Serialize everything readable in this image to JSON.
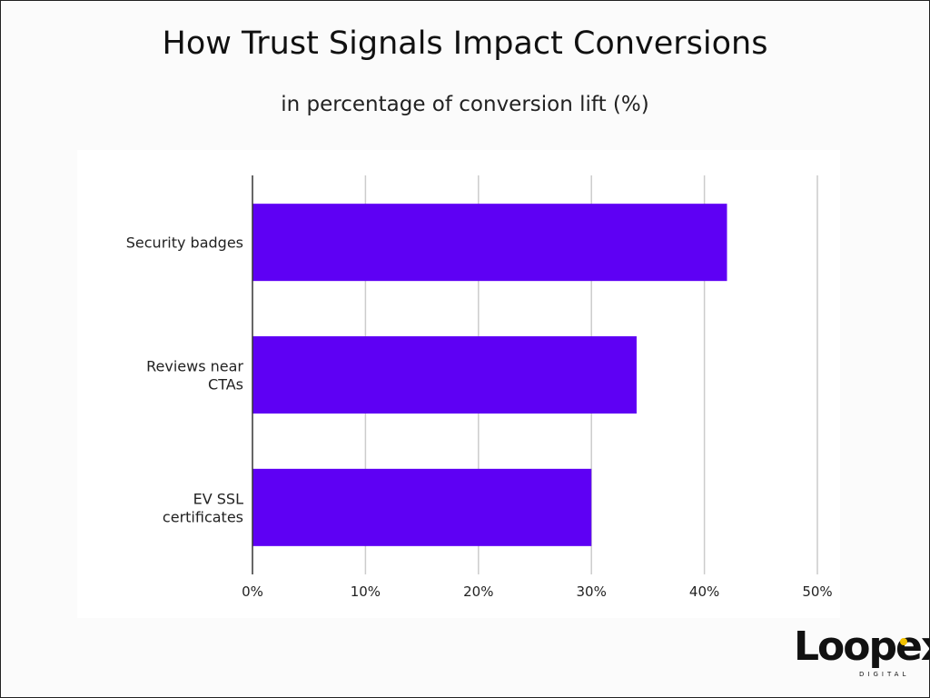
{
  "chart_data": {
    "type": "bar",
    "orientation": "horizontal",
    "title": "How Trust Signals Impact Conversions",
    "subtitle": "in percentage of conversion lift (%)",
    "categories": [
      "Security badges",
      "Reviews near CTAs",
      "EV SSL certificates"
    ],
    "category_lines": [
      [
        "Security badges"
      ],
      [
        "Reviews near",
        "CTAs"
      ],
      [
        "EV SSL",
        "certificates"
      ]
    ],
    "values": [
      42,
      34,
      30
    ],
    "xlim": [
      0,
      50
    ],
    "xticks": [
      0,
      10,
      20,
      30,
      40,
      50
    ],
    "xtick_labels": [
      "0%",
      "10%",
      "20%",
      "30%",
      "40%",
      "50%"
    ],
    "xlabel": "",
    "ylabel": "",
    "grid": true,
    "bar_color": "#5e00f4"
  },
  "branding": {
    "logo_text": "Loopex",
    "logo_subtext": "DIGITAL",
    "accent_color": "#f2c200"
  }
}
